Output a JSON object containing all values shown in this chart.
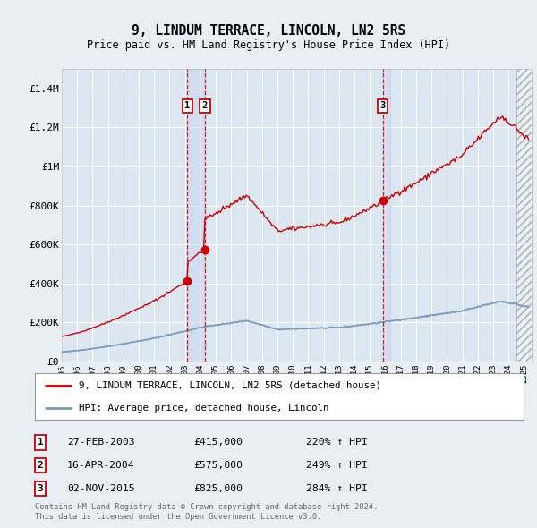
{
  "title": "9, LINDUM TERRACE, LINCOLN, LN2 5RS",
  "subtitle": "Price paid vs. HM Land Registry's House Price Index (HPI)",
  "ylim": [
    0,
    1500000
  ],
  "yticks": [
    0,
    200000,
    400000,
    600000,
    800000,
    1000000,
    1200000,
    1400000
  ],
  "ytick_labels": [
    "£0",
    "£200K",
    "£400K",
    "£600K",
    "£800K",
    "£1M",
    "£1.2M",
    "£1.4M"
  ],
  "xlim_start": 1995.0,
  "xlim_end": 2025.5,
  "sale_events": [
    {
      "num": 1,
      "year": 2003.15,
      "price": 415000,
      "label": "27-FEB-2003",
      "amount": "£415,000",
      "pct": "220% ↑ HPI"
    },
    {
      "num": 2,
      "year": 2004.29,
      "price": 575000,
      "label": "16-APR-2004",
      "amount": "£575,000",
      "pct": "249% ↑ HPI"
    },
    {
      "num": 3,
      "year": 2015.84,
      "price": 825000,
      "label": "02-NOV-2015",
      "amount": "£825,000",
      "pct": "284% ↑ HPI"
    }
  ],
  "legend_line1": "9, LINDUM TERRACE, LINCOLN, LN2 5RS (detached house)",
  "legend_line2": "HPI: Average price, detached house, Lincoln",
  "footer1": "Contains HM Land Registry data © Crown copyright and database right 2024.",
  "footer2": "This data is licensed under the Open Government Licence v3.0.",
  "red_color": "#cc0000",
  "blue_color": "#7799bb",
  "bg_color": "#e8eef4",
  "plot_bg": "#dce6f0",
  "grid_color": "#ffffff",
  "shade_color": "#c8d8ec"
}
